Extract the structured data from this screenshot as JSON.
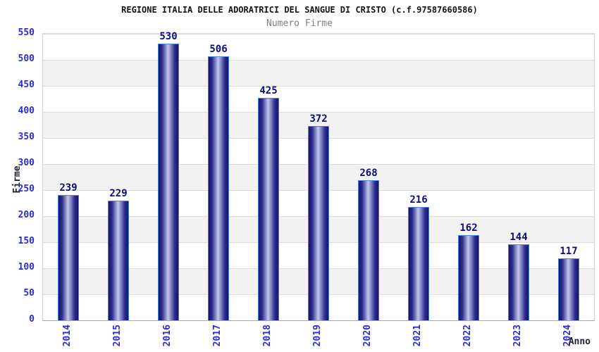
{
  "chart_data": {
    "type": "bar",
    "title": "REGIONE ITALIA DELLE ADORATRICI DEL SANGUE DI CRISTO (c.f.97587660586)",
    "subtitle": "Numero Firme",
    "xlabel": "Anno",
    "ylabel": "Firme",
    "categories": [
      "2014",
      "2015",
      "2016",
      "2017",
      "2018",
      "2019",
      "2020",
      "2021",
      "2022",
      "2023",
      "2024"
    ],
    "values": [
      239,
      229,
      530,
      506,
      425,
      372,
      268,
      216,
      162,
      144,
      117
    ],
    "ylim": [
      0,
      550
    ],
    "ytick_step": 50,
    "grid": "horizontal gridlines every 50 with alternating white/gray bands",
    "legend": "none",
    "bar_labels_shown": true,
    "x_tick_rotation": "vertical",
    "colors": {
      "title": "#141414",
      "subtitle": "#7f7f7f",
      "tick_label": "#2b2bd0",
      "value_label": "#0d0d78",
      "axis_label": "#1f1f2e",
      "bar_dark": "#15156b",
      "bar_mid": "#2c2c8f",
      "bar_light": "#c2c9ea",
      "bar_border": "#4a86de",
      "band_alt": "#f2f2f2",
      "gridline": "#dcdcdc",
      "plot_border": "#d0d0d0",
      "axis_line": "#a8a8a8"
    }
  }
}
